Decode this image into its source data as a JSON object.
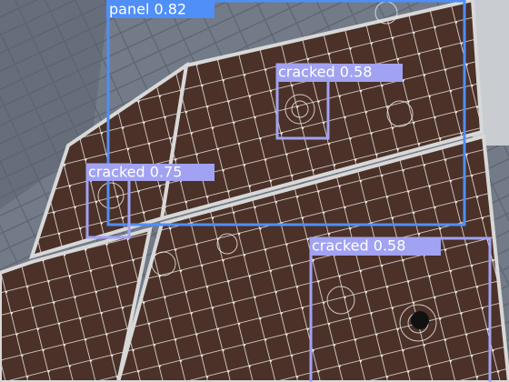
{
  "detections": [
    {
      "label": "panel 0.82"
    },
    {
      "label": "cracked 0.58"
    },
    {
      "label": "cracked 0.75"
    },
    {
      "label": "cracked 0.58"
    }
  ]
}
